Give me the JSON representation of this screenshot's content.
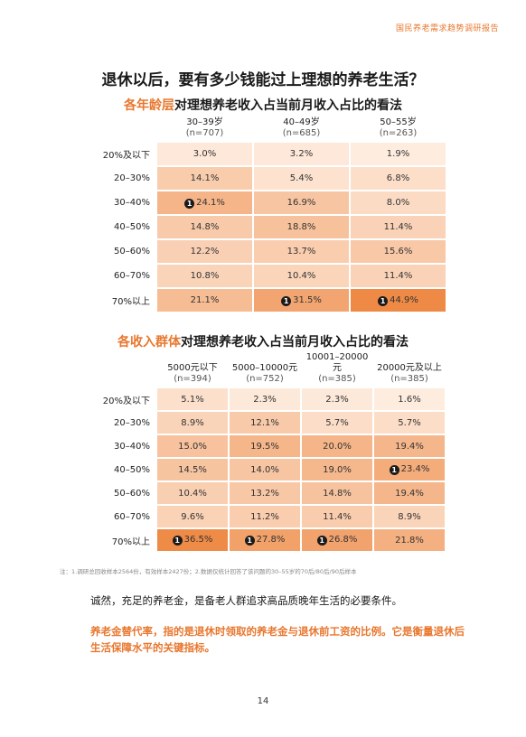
{
  "header_tag": "国民养老需求趋势调研报告",
  "main_title": "退休以后，要有多少钱能过上理想的养老生活？",
  "age_section": {
    "title_highlight": "各年龄层",
    "title_rest": "对理想养老收入占当前月收入占比的看法",
    "columns": [
      {
        "label": "30–39岁",
        "n": "(n=707)"
      },
      {
        "label": "40–49岁",
        "n": "(n=685)"
      },
      {
        "label": "50–55岁",
        "n": "(n=263)"
      }
    ],
    "rows": [
      {
        "label": "20%及以下",
        "values": [
          "3.0%",
          "3.2%",
          "1.9%"
        ],
        "marked": [
          false,
          false,
          false
        ]
      },
      {
        "label": "20–30%",
        "values": [
          "14.1%",
          "5.4%",
          "6.8%"
        ],
        "marked": [
          false,
          false,
          false
        ]
      },
      {
        "label": "30–40%",
        "values": [
          "24.1%",
          "16.9%",
          "8.0%"
        ],
        "marked": [
          true,
          false,
          false
        ]
      },
      {
        "label": "40–50%",
        "values": [
          "14.8%",
          "18.8%",
          "11.4%"
        ],
        "marked": [
          false,
          false,
          false
        ]
      },
      {
        "label": "50–60%",
        "values": [
          "12.2%",
          "13.7%",
          "15.6%"
        ],
        "marked": [
          false,
          false,
          false
        ]
      },
      {
        "label": "60–70%",
        "values": [
          "10.8%",
          "10.4%",
          "11.4%"
        ],
        "marked": [
          false,
          false,
          false
        ]
      },
      {
        "label": "70%以上",
        "values": [
          "21.1%",
          "31.5%",
          "44.9%"
        ],
        "marked": [
          false,
          true,
          true
        ]
      }
    ]
  },
  "income_section": {
    "title_highlight": "各收入群体",
    "title_rest": "对理想养老收入占当前月收入占比的看法",
    "columns": [
      {
        "label": "5000元以下",
        "n": "(n=394)"
      },
      {
        "label": "5000–10000元",
        "n": "(n=752)"
      },
      {
        "label": "10001–20000元",
        "n": "(n=385)"
      },
      {
        "label": "20000元及以上",
        "n": "(n=385)"
      }
    ],
    "rows": [
      {
        "label": "20%及以下",
        "values": [
          "5.1%",
          "2.3%",
          "2.3%",
          "1.6%"
        ],
        "marked": [
          false,
          false,
          false,
          false
        ]
      },
      {
        "label": "20–30%",
        "values": [
          "8.9%",
          "12.1%",
          "5.7%",
          "5.7%"
        ],
        "marked": [
          false,
          false,
          false,
          false
        ]
      },
      {
        "label": "30–40%",
        "values": [
          "15.0%",
          "19.5%",
          "20.0%",
          "19.4%"
        ],
        "marked": [
          false,
          false,
          false,
          false
        ]
      },
      {
        "label": "40–50%",
        "values": [
          "14.5%",
          "14.0%",
          "19.0%",
          "23.4%"
        ],
        "marked": [
          false,
          false,
          false,
          true
        ]
      },
      {
        "label": "50–60%",
        "values": [
          "10.4%",
          "13.2%",
          "14.8%",
          "19.4%"
        ],
        "marked": [
          false,
          false,
          false,
          false
        ]
      },
      {
        "label": "60–70%",
        "values": [
          "9.6%",
          "11.2%",
          "11.4%",
          "8.9%"
        ],
        "marked": [
          false,
          false,
          false,
          false
        ]
      },
      {
        "label": "70%以上",
        "values": [
          "36.5%",
          "27.8%",
          "26.8%",
          "21.8%"
        ],
        "marked": [
          true,
          true,
          true,
          false
        ]
      }
    ]
  },
  "mark_symbol": "1",
  "heat_colors": {
    "low": "#fff3ea",
    "high": "#ee8a45"
  },
  "footnote": "注：1.调研总回收样本2564份，有效样本2427份；2.数据仅统计回答了该问题的30–55岁的70后/80后/90后样本",
  "paragraph_1": "诚然，充足的养老金，是备老人群追求高品质晚年生活的必要条件。",
  "paragraph_2": "养老金替代率，指的是退休时领取的养老金与退休前工资的比例。它是衡量退休后生活保障水平的关键指标。",
  "page_number": "14"
}
